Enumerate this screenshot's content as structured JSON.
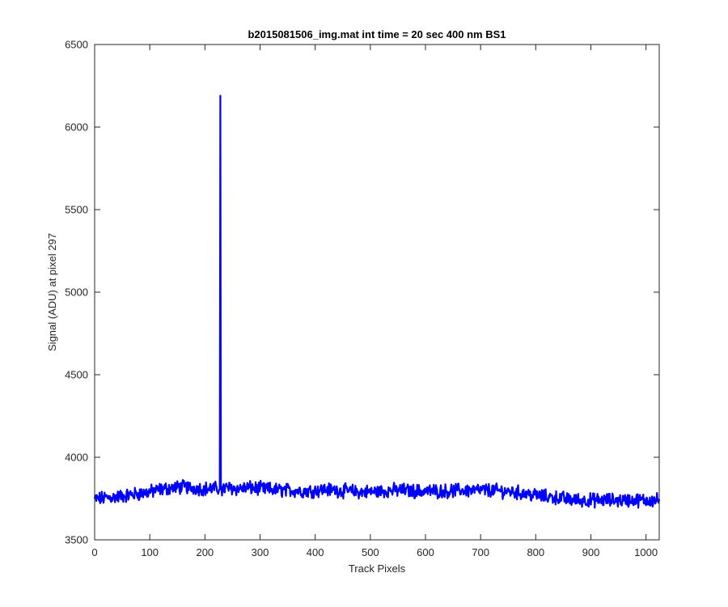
{
  "chart_data": {
    "type": "line",
    "title": "b2015081506_img.mat int time = 20 sec  400 nm BS1",
    "xlabel": "Track Pixels",
    "ylabel": "Signal (ADU) at pixel 297",
    "xlim": [
      0,
      1024
    ],
    "ylim": [
      3500,
      6500
    ],
    "xticks": [
      0,
      100,
      200,
      300,
      400,
      500,
      600,
      700,
      800,
      900,
      1000
    ],
    "yticks": [
      3500,
      4000,
      4500,
      5000,
      5500,
      6000,
      6500
    ],
    "grid": false,
    "series": [
      {
        "color": "#0000ff",
        "x": [
          0,
          20,
          40,
          60,
          80,
          100,
          120,
          140,
          160,
          180,
          200,
          220,
          226,
          227,
          228,
          229,
          230,
          240,
          260,
          280,
          300,
          320,
          340,
          360,
          380,
          400,
          420,
          440,
          460,
          480,
          500,
          520,
          540,
          560,
          580,
          600,
          620,
          640,
          660,
          680,
          700,
          720,
          740,
          760,
          780,
          800,
          820,
          840,
          860,
          880,
          900,
          920,
          940,
          960,
          980,
          1000,
          1024
        ],
        "y": [
          3745,
          3755,
          3760,
          3770,
          3780,
          3790,
          3805,
          3815,
          3820,
          3815,
          3810,
          3810,
          3805,
          6185,
          6190,
          3800,
          3805,
          3815,
          3810,
          3815,
          3810,
          3805,
          3800,
          3800,
          3795,
          3800,
          3805,
          3800,
          3795,
          3790,
          3790,
          3795,
          3800,
          3800,
          3795,
          3795,
          3795,
          3795,
          3800,
          3800,
          3800,
          3800,
          3795,
          3790,
          3780,
          3770,
          3760,
          3755,
          3745,
          3740,
          3740,
          3740,
          3740,
          3740,
          3740,
          3740,
          3740
        ]
      }
    ]
  }
}
